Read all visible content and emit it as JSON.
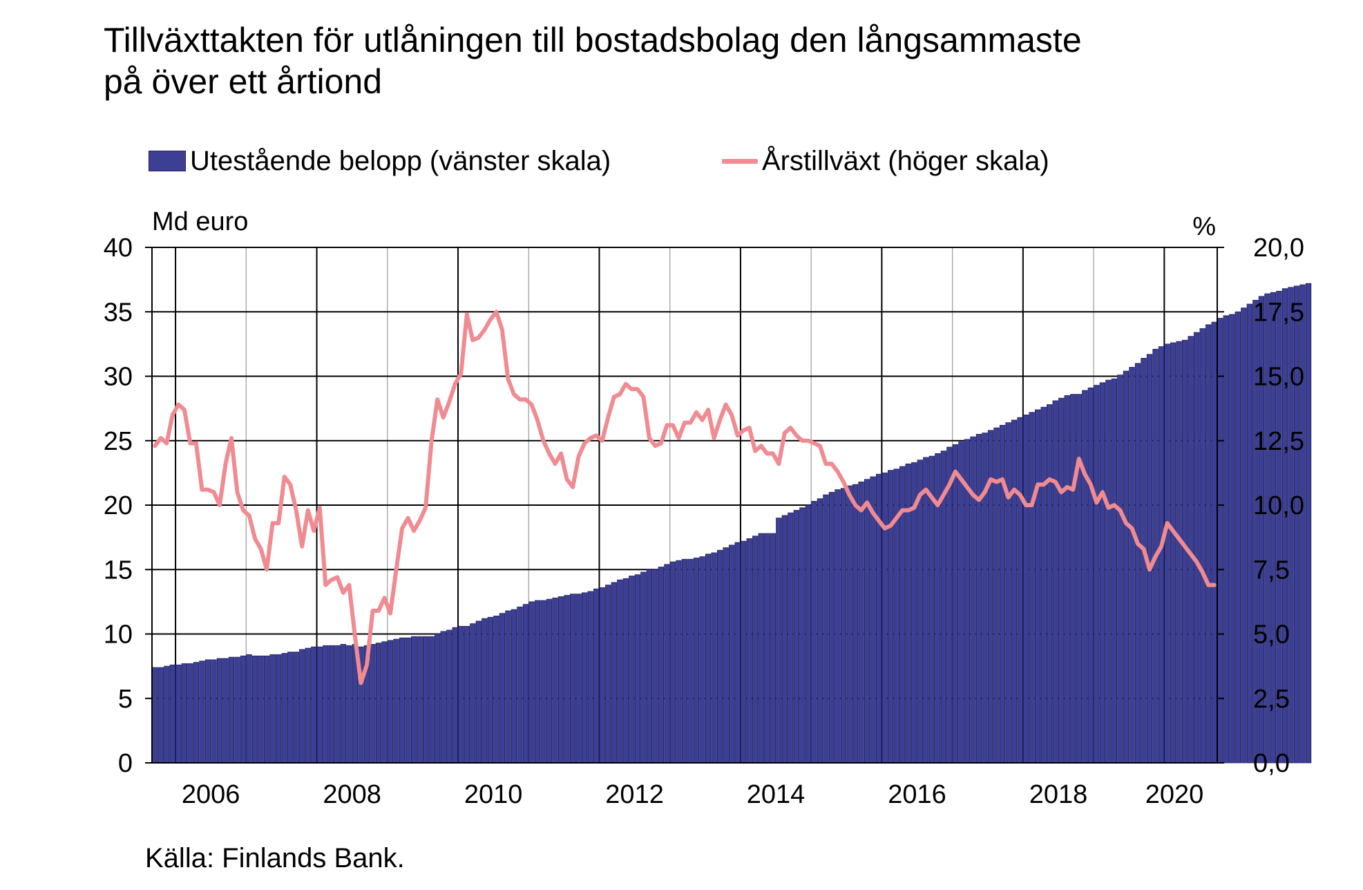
{
  "chart_data": {
    "type": "bar",
    "title": "Tillväxttakten för utlåningen till bostadsbolag den långsammaste på över ett årtiond",
    "title_lines": [
      "Tillväxttakten för utlåningen till bostadsbolag den långsammaste",
      "på över ett årtiond"
    ],
    "left_unit": "Md euro",
    "right_unit": "%",
    "source": "Källa: Finlands Bank.",
    "x_tick_labels": [
      "2006",
      "2008",
      "2010",
      "2012",
      "2014",
      "2016",
      "2018",
      "2020"
    ],
    "y_left_ticks": [
      "0",
      "5",
      "10",
      "15",
      "20",
      "25",
      "30",
      "35",
      "40"
    ],
    "y_right_ticks": [
      "0,0",
      "2,5",
      "5,0",
      "7,5",
      "10,0",
      "12,5",
      "15,0",
      "17,5",
      "20,0"
    ],
    "y_left_range": [
      0,
      40
    ],
    "y_right_range": [
      0,
      20
    ],
    "x_start": "2005-09",
    "x_end": "2020-09",
    "grid": true,
    "legend_position": "top",
    "series": [
      {
        "name": "Utestående belopp (vänster skala)",
        "type": "bar",
        "axis": "left",
        "color": "#3d3f94",
        "values": [
          7.4,
          7.4,
          7.5,
          7.6,
          7.6,
          7.7,
          7.7,
          7.8,
          7.9,
          8.0,
          8.0,
          8.1,
          8.1,
          8.2,
          8.2,
          8.3,
          8.4,
          8.3,
          8.3,
          8.3,
          8.4,
          8.4,
          8.5,
          8.6,
          8.6,
          8.8,
          8.9,
          9.0,
          9.0,
          9.1,
          9.1,
          9.1,
          9.2,
          9.1,
          9.2,
          9.0,
          9.1,
          9.2,
          9.3,
          9.4,
          9.5,
          9.6,
          9.7,
          9.7,
          9.8,
          9.8,
          9.8,
          9.8,
          10.0,
          10.2,
          10.3,
          10.5,
          10.6,
          10.6,
          10.8,
          11.0,
          11.2,
          11.3,
          11.4,
          11.6,
          11.8,
          11.9,
          12.1,
          12.3,
          12.5,
          12.6,
          12.6,
          12.7,
          12.8,
          12.9,
          13.0,
          13.1,
          13.1,
          13.2,
          13.3,
          13.5,
          13.6,
          13.8,
          14.0,
          14.2,
          14.3,
          14.5,
          14.6,
          14.8,
          15.0,
          15.0,
          15.2,
          15.4,
          15.6,
          15.7,
          15.8,
          15.8,
          15.9,
          16.0,
          16.2,
          16.3,
          16.5,
          16.7,
          16.9,
          17.1,
          17.2,
          17.4,
          17.6,
          17.8,
          17.8,
          17.8,
          19.0,
          19.2,
          19.4,
          19.6,
          19.8,
          20.0,
          20.3,
          20.5,
          20.8,
          21.0,
          21.2,
          21.3,
          21.5,
          21.6,
          21.8,
          22.0,
          22.2,
          22.4,
          22.5,
          22.7,
          22.8,
          23.0,
          23.2,
          23.3,
          23.5,
          23.7,
          23.8,
          24.0,
          24.2,
          24.5,
          24.7,
          24.9,
          25.1,
          25.3,
          25.5,
          25.6,
          25.8,
          26.0,
          26.2,
          26.4,
          26.6,
          26.8,
          27.0,
          27.2,
          27.4,
          27.6,
          27.8,
          28.1,
          28.3,
          28.5,
          28.6,
          28.6,
          28.9,
          29.1,
          29.3,
          29.5,
          29.7,
          29.8,
          30.1,
          30.4,
          30.7,
          31.0,
          31.4,
          31.7,
          32.1,
          32.3,
          32.5,
          32.6,
          32.7,
          32.8,
          33.1,
          33.4,
          33.7,
          34.0,
          34.2,
          34.5,
          34.7,
          34.8,
          35.0,
          35.3,
          35.6,
          35.9,
          36.2,
          36.4,
          36.5,
          36.6,
          36.8,
          36.9,
          37.0,
          37.1,
          37.2
        ]
      },
      {
        "name": "Årstillväxt (höger skala)",
        "type": "line",
        "axis": "right",
        "color": "#f08b91",
        "values": [
          12.3,
          12.6,
          12.4,
          13.5,
          13.9,
          13.7,
          12.4,
          12.4,
          10.6,
          10.6,
          10.5,
          10.0,
          11.6,
          12.6,
          10.5,
          9.8,
          9.6,
          8.7,
          8.3,
          7.5,
          9.3,
          9.3,
          11.1,
          10.8,
          9.8,
          8.4,
          9.8,
          9.0,
          9.9,
          6.9,
          7.1,
          7.2,
          6.6,
          6.9,
          4.9,
          3.1,
          3.8,
          5.9,
          5.9,
          6.4,
          5.8,
          7.5,
          9.1,
          9.5,
          9.0,
          9.4,
          9.9,
          12.5,
          14.1,
          13.4,
          14.0,
          14.7,
          15.1,
          17.4,
          16.4,
          16.5,
          16.8,
          17.2,
          17.5,
          16.8,
          14.9,
          14.3,
          14.1,
          14.1,
          13.9,
          13.3,
          12.5,
          12.0,
          11.6,
          12.0,
          11.0,
          10.7,
          11.9,
          12.4,
          12.6,
          12.7,
          12.5,
          13.4,
          14.2,
          14.3,
          14.7,
          14.5,
          14.5,
          14.2,
          12.6,
          12.3,
          12.4,
          13.1,
          13.1,
          12.6,
          13.2,
          13.2,
          13.6,
          13.3,
          13.7,
          12.6,
          13.3,
          13.9,
          13.5,
          12.7,
          12.9,
          13.0,
          12.1,
          12.3,
          12.0,
          12.0,
          11.6,
          12.8,
          13.0,
          12.7,
          12.5,
          12.5,
          12.4,
          12.3,
          11.6,
          11.6,
          11.3,
          10.9,
          10.4,
          10.0,
          9.8,
          10.1,
          9.7,
          9.4,
          9.1,
          9.2,
          9.5,
          9.8,
          9.8,
          9.9,
          10.4,
          10.6,
          10.3,
          10.0,
          10.4,
          10.8,
          11.3,
          11.0,
          10.7,
          10.4,
          10.2,
          10.5,
          11.0,
          10.9,
          11.0,
          10.3,
          10.6,
          10.4,
          10.0,
          10.0,
          10.8,
          10.8,
          11.0,
          10.9,
          10.5,
          10.7,
          10.6,
          11.8,
          11.2,
          10.8,
          10.1,
          10.5,
          9.9,
          10.0,
          9.8,
          9.3,
          9.1,
          8.5,
          8.3,
          7.5,
          8.0,
          8.4,
          9.3,
          9.0,
          8.7,
          8.4,
          8.1,
          7.8,
          7.4,
          6.9,
          6.9
        ]
      }
    ]
  }
}
